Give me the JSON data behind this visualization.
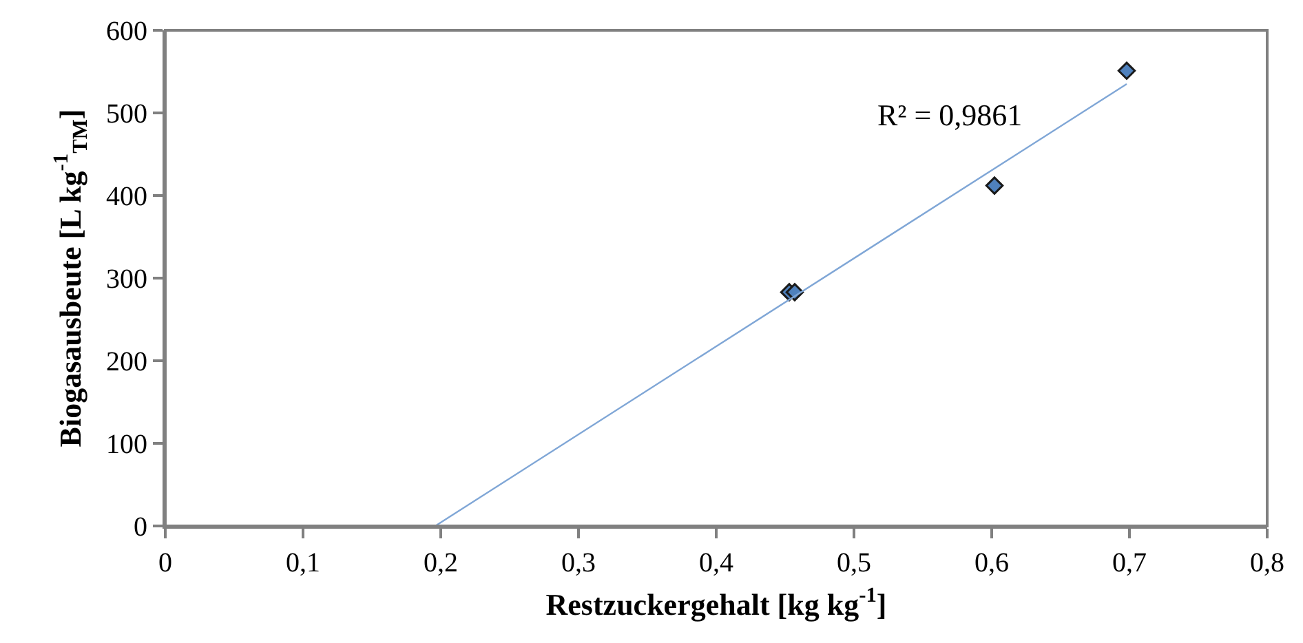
{
  "chart_data": {
    "type": "scatter",
    "xlabel": "Restzuckergehalt [kg kg$^{-1}$]",
    "ylabel": "Biogasausbeute [L kg$^{-1}$$_{TM}$]",
    "x": [
      0.453,
      0.457,
      0.602,
      0.698
    ],
    "series": [
      {
        "color": "#4f81bd",
        "values": [
          283,
          283,
          412,
          551
        ],
        "marker": "diamond"
      },
      {
        "type": "line",
        "color": "#7fa6d6",
        "x": [
          0.196,
          0.698
        ],
        "values": [
          0,
          535
        ],
        "marker": "none"
      }
    ],
    "annotations": [
      "R² = 0,9861"
    ],
    "xlim": [
      0,
      0.8
    ],
    "ylim": [
      0,
      600
    ],
    "xticks": [
      {
        "value": 0,
        "label": "0"
      },
      {
        "value": 0.1,
        "label": "0,1"
      },
      {
        "value": 0.2,
        "label": "0,2"
      },
      {
        "value": 0.3,
        "label": "0,3"
      },
      {
        "value": 0.4,
        "label": "0,4"
      },
      {
        "value": 0.5,
        "label": "0,5"
      },
      {
        "value": 0.6,
        "label": "0,6"
      },
      {
        "value": 0.7,
        "label": "0,7"
      },
      {
        "value": 0.8,
        "label": "0,8"
      }
    ],
    "yticks": [
      0,
      100,
      200,
      300,
      400,
      500,
      600
    ],
    "grid": false
  }
}
